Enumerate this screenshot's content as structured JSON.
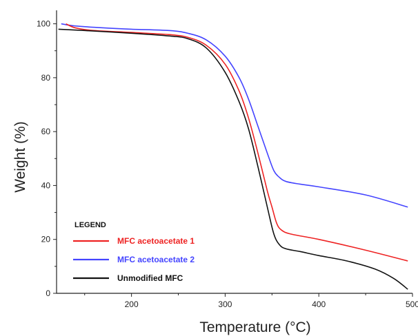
{
  "chart_data": {
    "type": "line",
    "title": "",
    "xlabel": "Temperature (°C)",
    "ylabel": "Weight (%)",
    "xlim": [
      120,
      500
    ],
    "ylim": [
      0,
      105
    ],
    "xticks": [
      200,
      300,
      400,
      500
    ],
    "yticks": [
      0,
      20,
      40,
      60,
      80,
      100
    ],
    "grid": false,
    "legend_title": "LEGEND",
    "legend_position": "bottom-left",
    "series": [
      {
        "name": "MFC acetoacetate 1",
        "color": "#ee2222",
        "points": [
          [
            130,
            100
          ],
          [
            140,
            98.5
          ],
          [
            160,
            97.5
          ],
          [
            200,
            96.8
          ],
          [
            240,
            96.0
          ],
          [
            260,
            95.0
          ],
          [
            280,
            92.0
          ],
          [
            300,
            85.0
          ],
          [
            315,
            75.0
          ],
          [
            325,
            65.0
          ],
          [
            335,
            52.0
          ],
          [
            345,
            38.0
          ],
          [
            350,
            32.0
          ],
          [
            355,
            26.0
          ],
          [
            360,
            23.5
          ],
          [
            370,
            22.0
          ],
          [
            400,
            20.0
          ],
          [
            450,
            16.0
          ],
          [
            495,
            12.0
          ]
        ]
      },
      {
        "name": "MFC acetoacetate 2",
        "color": "#4444ff",
        "points": [
          [
            125,
            100
          ],
          [
            140,
            99.2
          ],
          [
            170,
            98.5
          ],
          [
            200,
            98.0
          ],
          [
            240,
            97.5
          ],
          [
            260,
            96.5
          ],
          [
            280,
            94.0
          ],
          [
            300,
            88.0
          ],
          [
            315,
            80.0
          ],
          [
            325,
            72.0
          ],
          [
            335,
            62.0
          ],
          [
            345,
            52.0
          ],
          [
            352,
            45.5
          ],
          [
            358,
            43.0
          ],
          [
            365,
            41.5
          ],
          [
            380,
            40.5
          ],
          [
            400,
            39.5
          ],
          [
            450,
            36.5
          ],
          [
            495,
            32.0
          ]
        ]
      },
      {
        "name": "Unmodified MFC",
        "color": "#111111",
        "points": [
          [
            122,
            98
          ],
          [
            150,
            97.5
          ],
          [
            200,
            96.5
          ],
          [
            240,
            95.5
          ],
          [
            260,
            94.5
          ],
          [
            280,
            91.0
          ],
          [
            300,
            82.0
          ],
          [
            315,
            71.0
          ],
          [
            325,
            61.0
          ],
          [
            335,
            47.0
          ],
          [
            345,
            32.0
          ],
          [
            352,
            22.0
          ],
          [
            358,
            18.0
          ],
          [
            365,
            16.5
          ],
          [
            380,
            15.5
          ],
          [
            400,
            14.0
          ],
          [
            430,
            12.0
          ],
          [
            460,
            9.0
          ],
          [
            480,
            5.5
          ],
          [
            495,
            1.5
          ]
        ]
      }
    ]
  }
}
